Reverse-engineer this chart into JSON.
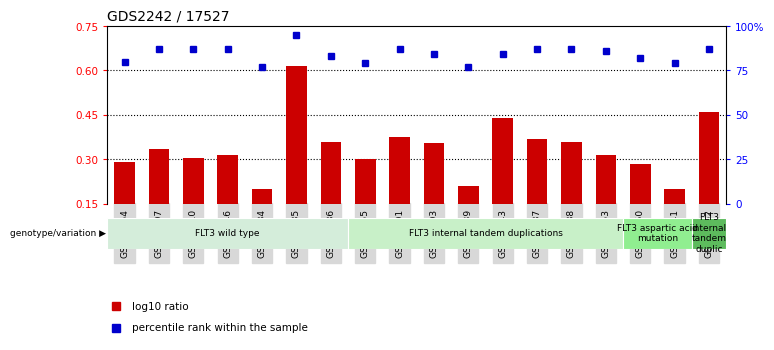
{
  "title": "GDS2242 / 17527",
  "samples": [
    "GSM48254",
    "GSM48507",
    "GSM48510",
    "GSM48546",
    "GSM48584",
    "GSM48585",
    "GSM48586",
    "GSM48255",
    "GSM48501",
    "GSM48503",
    "GSM48539",
    "GSM48543",
    "GSM48587",
    "GSM48588",
    "GSM48253",
    "GSM48350",
    "GSM48541",
    "GSM48252"
  ],
  "bar_values": [
    0.29,
    0.335,
    0.305,
    0.315,
    0.2,
    0.615,
    0.36,
    0.3,
    0.375,
    0.355,
    0.21,
    0.44,
    0.37,
    0.36,
    0.315,
    0.285,
    0.2,
    0.46
  ],
  "pct_values": [
    80,
    87,
    87,
    87,
    77,
    95,
    83,
    79,
    87,
    84,
    77,
    84,
    87,
    87,
    86,
    82,
    79,
    87
  ],
  "bar_color": "#cc0000",
  "dot_color": "#0000cc",
  "ylim": [
    0.15,
    0.75
  ],
  "yticks_left": [
    0.15,
    0.3,
    0.45,
    0.6,
    0.75
  ],
  "ytick_labels_left": [
    "0.15",
    "0.30",
    "0.45",
    "0.60",
    "0.75"
  ],
  "yticks_right_pos": [
    0.15,
    0.3,
    0.45,
    0.6,
    0.75
  ],
  "ytick_labels_right": [
    "0",
    "25",
    "50",
    "75",
    "100%"
  ],
  "hlines": [
    0.3,
    0.45,
    0.6
  ],
  "groups": [
    {
      "label": "FLT3 wild type",
      "start": 0,
      "end": 6,
      "color": "#d4edda"
    },
    {
      "label": "FLT3 internal tandem duplications",
      "start": 7,
      "end": 14,
      "color": "#c8f0c8"
    },
    {
      "label": "FLT3 aspartic acid\nmutation",
      "start": 15,
      "end": 16,
      "color": "#90ee90"
    },
    {
      "label": "FLT3\ninternal\ntandem\nduplic",
      "start": 17,
      "end": 17,
      "color": "#5dbb5d"
    }
  ],
  "genotype_label": "genotype/variation",
  "legend_bar_label": "log10 ratio",
  "legend_dot_label": "percentile rank within the sample"
}
